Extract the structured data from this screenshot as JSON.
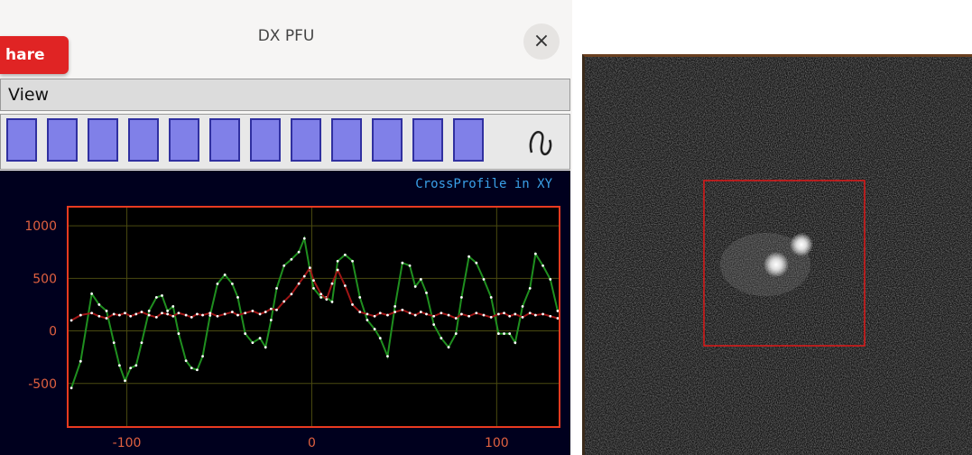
{
  "window": {
    "title": "DX PFU",
    "close": "×",
    "share_button": "hare",
    "menu": "View"
  },
  "chart_data": {
    "type": "line",
    "title": "CrossProfile in XY",
    "x": [
      -130,
      -125,
      -119,
      -115,
      -111,
      -107,
      -104,
      -101,
      -98,
      -95,
      -92,
      -88,
      -84,
      -81,
      -78,
      -75,
      -72,
      -68,
      -65,
      -62,
      -59,
      -55,
      -51,
      -47,
      -43,
      -40,
      -36,
      -32,
      -28,
      -25,
      -22,
      -19,
      -15,
      -11,
      -7,
      -4,
      -1,
      1,
      5,
      8,
      11,
      14,
      18,
      22,
      26,
      30,
      34,
      37,
      41,
      45,
      49,
      53,
      56,
      59,
      62,
      66,
      70,
      74,
      78,
      81,
      85,
      89,
      93,
      97,
      101,
      104,
      107,
      110,
      114,
      118,
      121,
      125,
      129,
      133
    ],
    "series": [
      {
        "color": "#1f8f1f",
        "values": [
          -543,
          -289,
          353,
          250,
          190,
          -112,
          -328,
          -474,
          -353,
          -328,
          -112,
          190,
          319,
          336,
          190,
          233,
          -26,
          -284,
          -353,
          -371,
          -241,
          147,
          448,
          534,
          448,
          319,
          -26,
          -112,
          -69,
          -155,
          103,
          405,
          621,
          681,
          750,
          879,
          578,
          405,
          319,
          319,
          276,
          664,
          724,
          664,
          319,
          103,
          17,
          -69,
          -241,
          233,
          647,
          621,
          422,
          491,
          362,
          60,
          -69,
          -155,
          -26,
          319,
          707,
          647,
          491,
          319,
          -26,
          -26,
          -26,
          -112,
          233,
          405,
          733,
          621,
          491,
          190
        ]
      },
      {
        "color": "#a01515",
        "values": [
          100,
          150,
          170,
          140,
          120,
          160,
          150,
          170,
          140,
          160,
          180,
          150,
          130,
          170,
          160,
          140,
          170,
          150,
          130,
          160,
          150,
          170,
          140,
          160,
          180,
          150,
          170,
          190,
          160,
          180,
          210,
          200,
          280,
          350,
          450,
          520,
          600,
          480,
          350,
          300,
          450,
          580,
          430,
          250,
          180,
          160,
          140,
          170,
          150,
          180,
          200,
          170,
          150,
          180,
          160,
          140,
          170,
          150,
          120,
          160,
          140,
          170,
          150,
          130,
          160,
          170,
          140,
          160,
          130,
          170,
          150,
          160,
          140,
          120
        ]
      }
    ],
    "xlim": [
      -132,
      134
    ],
    "ylim": [
      -914,
      1181
    ],
    "xticks": [
      -100,
      0,
      100
    ],
    "yticks": [
      -500,
      0,
      500,
      1000
    ],
    "grid": true,
    "marker_color": "#ffffff"
  }
}
